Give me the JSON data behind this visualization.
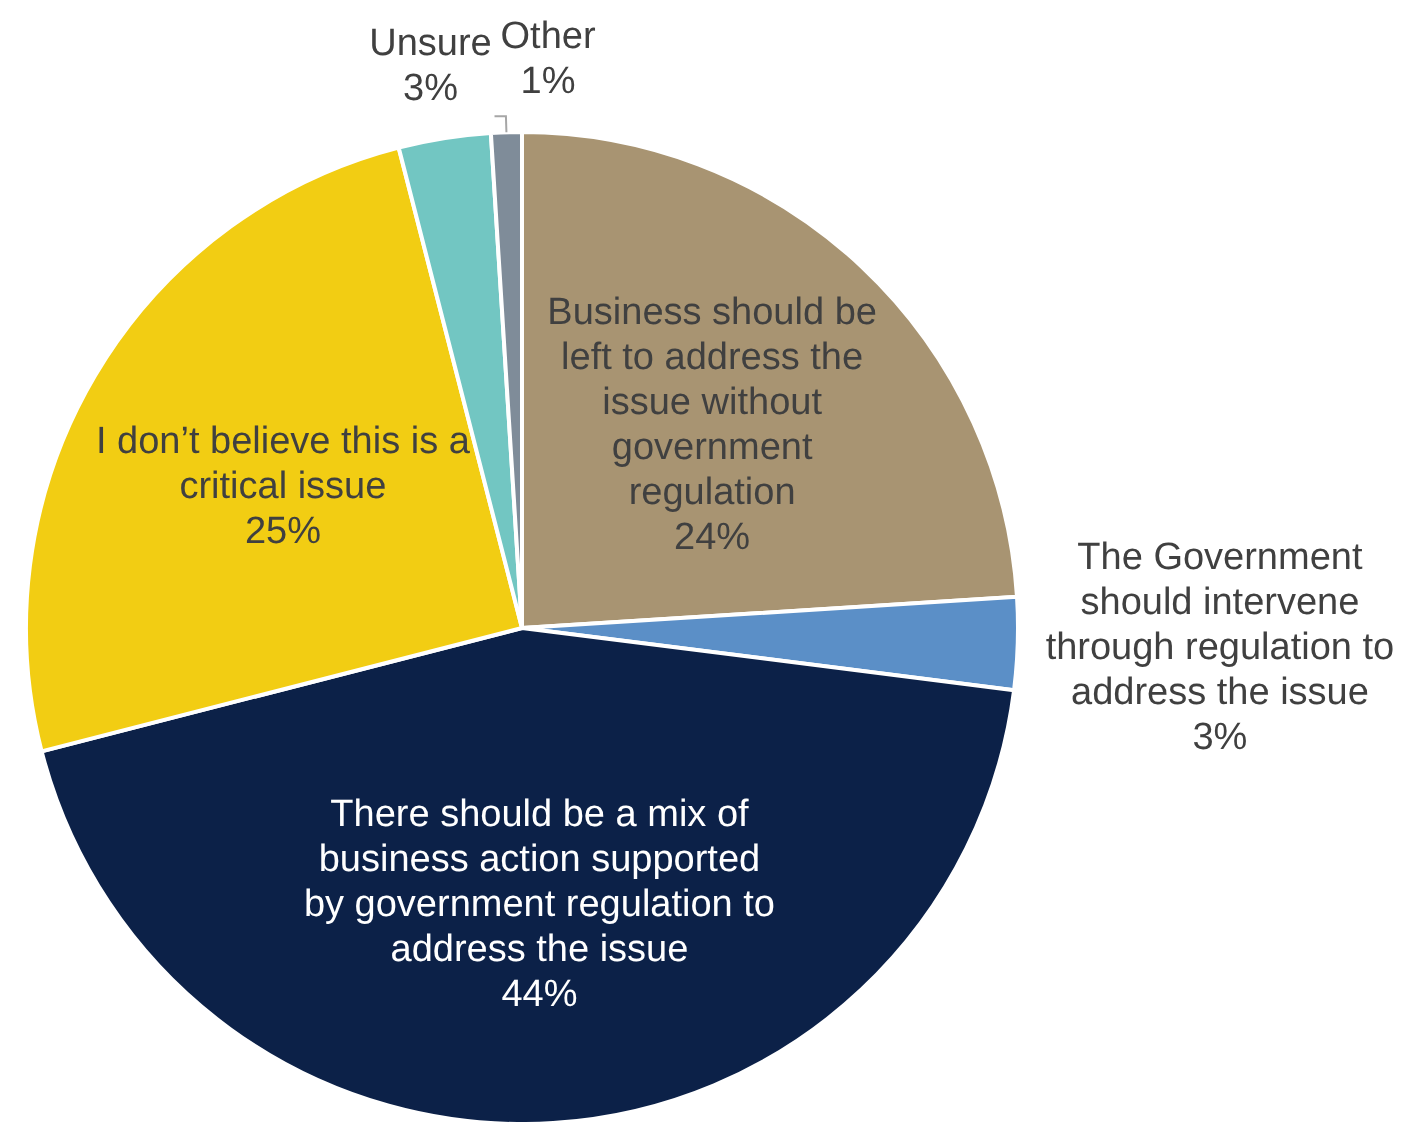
{
  "chart_data": {
    "type": "pie",
    "categories": [
      "Business should be left to address the issue without government regulation",
      "The Government should intervene through regulation to address the issue",
      "There should be a mix of business action supported by government regulation to address the issue",
      "I don’t believe this is a critical issue",
      "Unsure",
      "Other"
    ],
    "values": [
      24,
      3,
      44,
      25,
      3,
      1
    ],
    "colors": [
      "#a89472",
      "#5b8fc7",
      "#0c2148",
      "#f2cd13",
      "#72c6c2",
      "#7f8c99"
    ],
    "value_labels": [
      "24%",
      "3%",
      "44%",
      "25%",
      "3%",
      "1%"
    ]
  }
}
